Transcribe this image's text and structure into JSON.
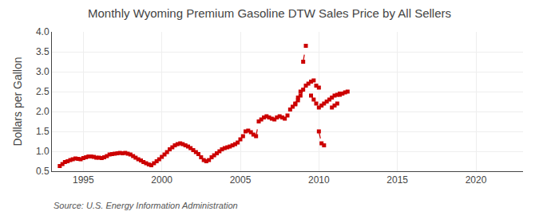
{
  "chart_data": {
    "type": "line",
    "title": "Monthly Wyoming Premium Gasoline DTW Sales Price by All Sellers",
    "ylabel": "Dollars per Gallon",
    "annotations": [
      "Source: U.S. Energy Information Administration"
    ],
    "xlim": [
      1993.0,
      2023.0
    ],
    "xticks": [
      1995,
      2000,
      2005,
      2010,
      2015,
      2020
    ],
    "ylim": [
      0.5,
      4.0
    ],
    "yticks": [
      0.5,
      {
        "value": 1.0,
        "label": "1.0"
      },
      1.5,
      {
        "value": 2.0,
        "label": "2.0"
      },
      2.5,
      {
        "value": 3.0,
        "label": "3.0"
      },
      3.5,
      {
        "value": 4.0,
        "label": "4.0"
      }
    ],
    "grid": true,
    "series": [
      {
        "color": "#cc0000",
        "marker": "square",
        "line_style": "dashed",
        "x": [
          1993.5,
          1993.67,
          1993.83,
          1994.0,
          1994.17,
          1994.33,
          1994.5,
          1994.67,
          1994.83,
          1995.0,
          1995.17,
          1995.33,
          1995.5,
          1995.67,
          1995.83,
          1996.0,
          1996.17,
          1996.33,
          1996.5,
          1996.67,
          1996.83,
          1997.0,
          1997.17,
          1997.33,
          1997.5,
          1997.67,
          1997.83,
          1998.0,
          1998.17,
          1998.33,
          1998.5,
          1998.67,
          1998.83,
          1999.0,
          1999.17,
          1999.33,
          1999.5,
          1999.67,
          1999.83,
          2000.0,
          2000.17,
          2000.33,
          2000.5,
          2000.67,
          2000.83,
          2001.0,
          2001.17,
          2001.33,
          2001.5,
          2001.67,
          2001.83,
          2002.0,
          2002.17,
          2002.33,
          2002.5,
          2002.67,
          2002.83,
          2003.0,
          2003.17,
          2003.33,
          2003.5,
          2003.67,
          2003.83,
          2004.0,
          2004.17,
          2004.33,
          2004.5,
          2004.67,
          2004.83,
          2005.0,
          2005.17,
          2005.33,
          2005.5,
          2005.67,
          2005.83,
          2006.0,
          2006.17,
          2006.33,
          2006.5,
          2006.67,
          2006.83,
          2007.0,
          2007.17,
          2007.33,
          2007.5,
          2007.67,
          2007.83,
          2008.0,
          2008.17,
          2008.33,
          2008.5,
          2008.67,
          2008.83,
          2009.0,
          2009.17,
          2009.33,
          2009.5,
          2009.67,
          2009.83,
          2010.0
        ],
        "values": [
          0.63,
          0.68,
          0.73,
          0.75,
          0.78,
          0.8,
          0.82,
          0.81,
          0.8,
          0.83,
          0.85,
          0.87,
          0.87,
          0.86,
          0.84,
          0.84,
          0.83,
          0.85,
          0.88,
          0.92,
          0.93,
          0.94,
          0.95,
          0.96,
          0.95,
          0.96,
          0.94,
          0.92,
          0.88,
          0.84,
          0.8,
          0.77,
          0.73,
          0.7,
          0.67,
          0.65,
          0.7,
          0.75,
          0.8,
          0.86,
          0.92,
          0.98,
          1.05,
          1.1,
          1.15,
          1.18,
          1.2,
          1.18,
          1.15,
          1.12,
          1.08,
          1.03,
          0.98,
          0.93,
          0.85,
          0.78,
          0.75,
          0.78,
          0.85,
          0.9,
          0.95,
          1.0,
          1.05,
          1.08,
          1.1,
          1.12,
          1.15,
          1.18,
          1.22,
          1.3,
          1.38,
          1.5,
          1.52,
          1.48,
          1.42,
          1.38,
          1.75,
          1.8,
          1.85,
          1.88,
          1.85,
          1.82,
          1.8,
          1.85,
          1.88,
          1.85,
          1.82,
          1.9,
          2.05,
          2.12,
          2.18,
          2.28,
          2.4,
          2.55,
          2.65,
          2.7,
          2.75,
          2.78,
          2.65,
          2.6
        ]
      },
      {
        "color": "#cc0000",
        "marker": "square",
        "line_style": "dashed",
        "x": [
          2008.5,
          2008.67,
          2008.83
        ],
        "values": [
          2.2,
          2.35,
          2.5
        ]
      },
      {
        "color": "#cc0000",
        "marker": "square",
        "line_style": "dashed",
        "x": [
          2009.0,
          2009.17
        ],
        "values": [
          3.25,
          3.65
        ]
      },
      {
        "color": "#cc0000",
        "marker": "square",
        "line_style": "dashed",
        "x": [
          2009.5,
          2009.67,
          2009.83,
          2010.0,
          2010.17,
          2010.33,
          2010.5,
          2010.67,
          2010.83,
          2011.0,
          2011.17,
          2011.33
        ],
        "values": [
          2.4,
          2.3,
          2.2,
          2.1,
          2.15,
          2.2,
          2.25,
          2.3,
          2.35,
          2.4,
          2.42,
          2.45
        ]
      },
      {
        "color": "#cc0000",
        "marker": "square",
        "line_style": "dashed",
        "x": [
          2010.0,
          2010.17,
          2010.33
        ],
        "values": [
          1.5,
          1.2,
          1.15
        ]
      },
      {
        "color": "#cc0000",
        "marker": "square",
        "line_style": "dashed",
        "x": [
          2010.83,
          2011.0,
          2011.17
        ],
        "values": [
          2.1,
          2.15,
          2.2
        ]
      },
      {
        "color": "#cc0000",
        "marker": "square",
        "line_style": "dashed",
        "x": [
          2011.33,
          2011.5,
          2011.67,
          2011.83
        ],
        "values": [
          2.42,
          2.45,
          2.48,
          2.5
        ]
      }
    ]
  }
}
